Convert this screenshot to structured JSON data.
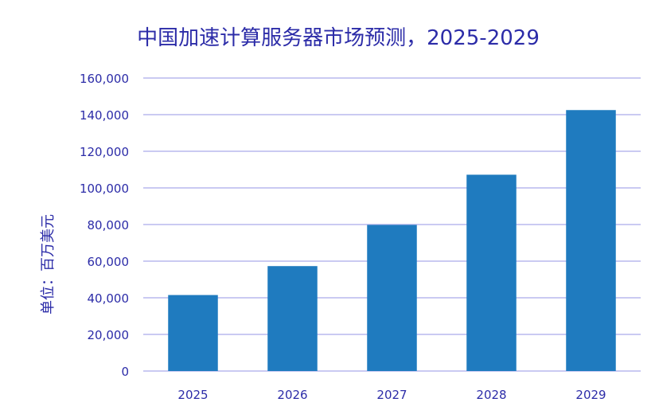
{
  "chart_data": {
    "type": "bar",
    "title": "中国加速计算服务器市场预测，2025-2029",
    "ylabel": "单位：百万美元",
    "xlabel": "",
    "categories": [
      "2025",
      "2026",
      "2027",
      "2028",
      "2029"
    ],
    "values": [
      41500,
      57300,
      79800,
      107200,
      142500
    ],
    "ylim": [
      0,
      160000
    ],
    "yticks": [
      0,
      20000,
      40000,
      60000,
      80000,
      100000,
      120000,
      140000,
      160000
    ],
    "ytick_labels": [
      "0",
      "20,000",
      "40,000",
      "60,000",
      "80,000",
      "100,000",
      "120,000",
      "140,000",
      "160,000"
    ],
    "grid": true,
    "legend": "none",
    "colors": {
      "bar": "#1f7bbf",
      "title": "#2c2ca8",
      "axis_text": "#2c2ca8",
      "grid": "#b8b8ee"
    }
  }
}
